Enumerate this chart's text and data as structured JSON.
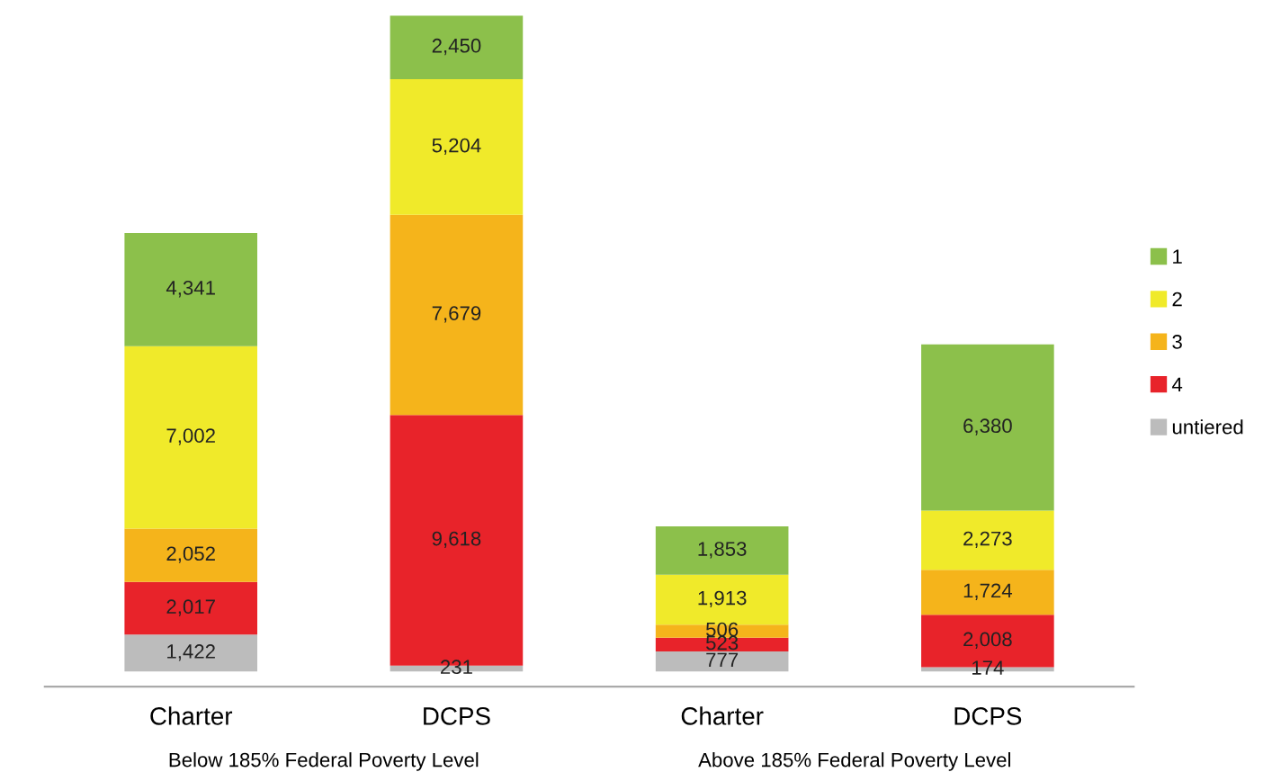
{
  "chart_data": {
    "type": "bar",
    "stacked": true,
    "categories": [
      "Charter",
      "DCPS",
      "Charter",
      "DCPS"
    ],
    "series": [
      {
        "name": "untiered",
        "color": "#bcbcbc",
        "values": [
          1422,
          231,
          777,
          174
        ],
        "value_labels": [
          "1,422",
          "231",
          "777",
          "174"
        ]
      },
      {
        "name": "4",
        "color": "#e8232a",
        "values": [
          2017,
          9618,
          523,
          2008
        ],
        "value_labels": [
          "2,017",
          "9,618",
          "523",
          "2,008"
        ]
      },
      {
        "name": "3",
        "color": "#f5b41b",
        "values": [
          2052,
          7679,
          506,
          1724
        ],
        "value_labels": [
          "2,052",
          "7,679",
          "506",
          "1,724"
        ]
      },
      {
        "name": "2",
        "color": "#f0ea2a",
        "values": [
          7002,
          5204,
          1913,
          2273
        ],
        "value_labels": [
          "7,002",
          "5,204",
          "1,913",
          "2,273"
        ]
      },
      {
        "name": "1",
        "color": "#8cc04b",
        "values": [
          4341,
          2450,
          1853,
          6380
        ],
        "value_labels": [
          "4,341",
          "2,450",
          "1,853",
          "6,380"
        ]
      }
    ],
    "annotations": [
      "Below 185% Federal Poverty Level",
      "Above 185% Federal Poverty Level"
    ],
    "legend": "right",
    "grid": false
  }
}
